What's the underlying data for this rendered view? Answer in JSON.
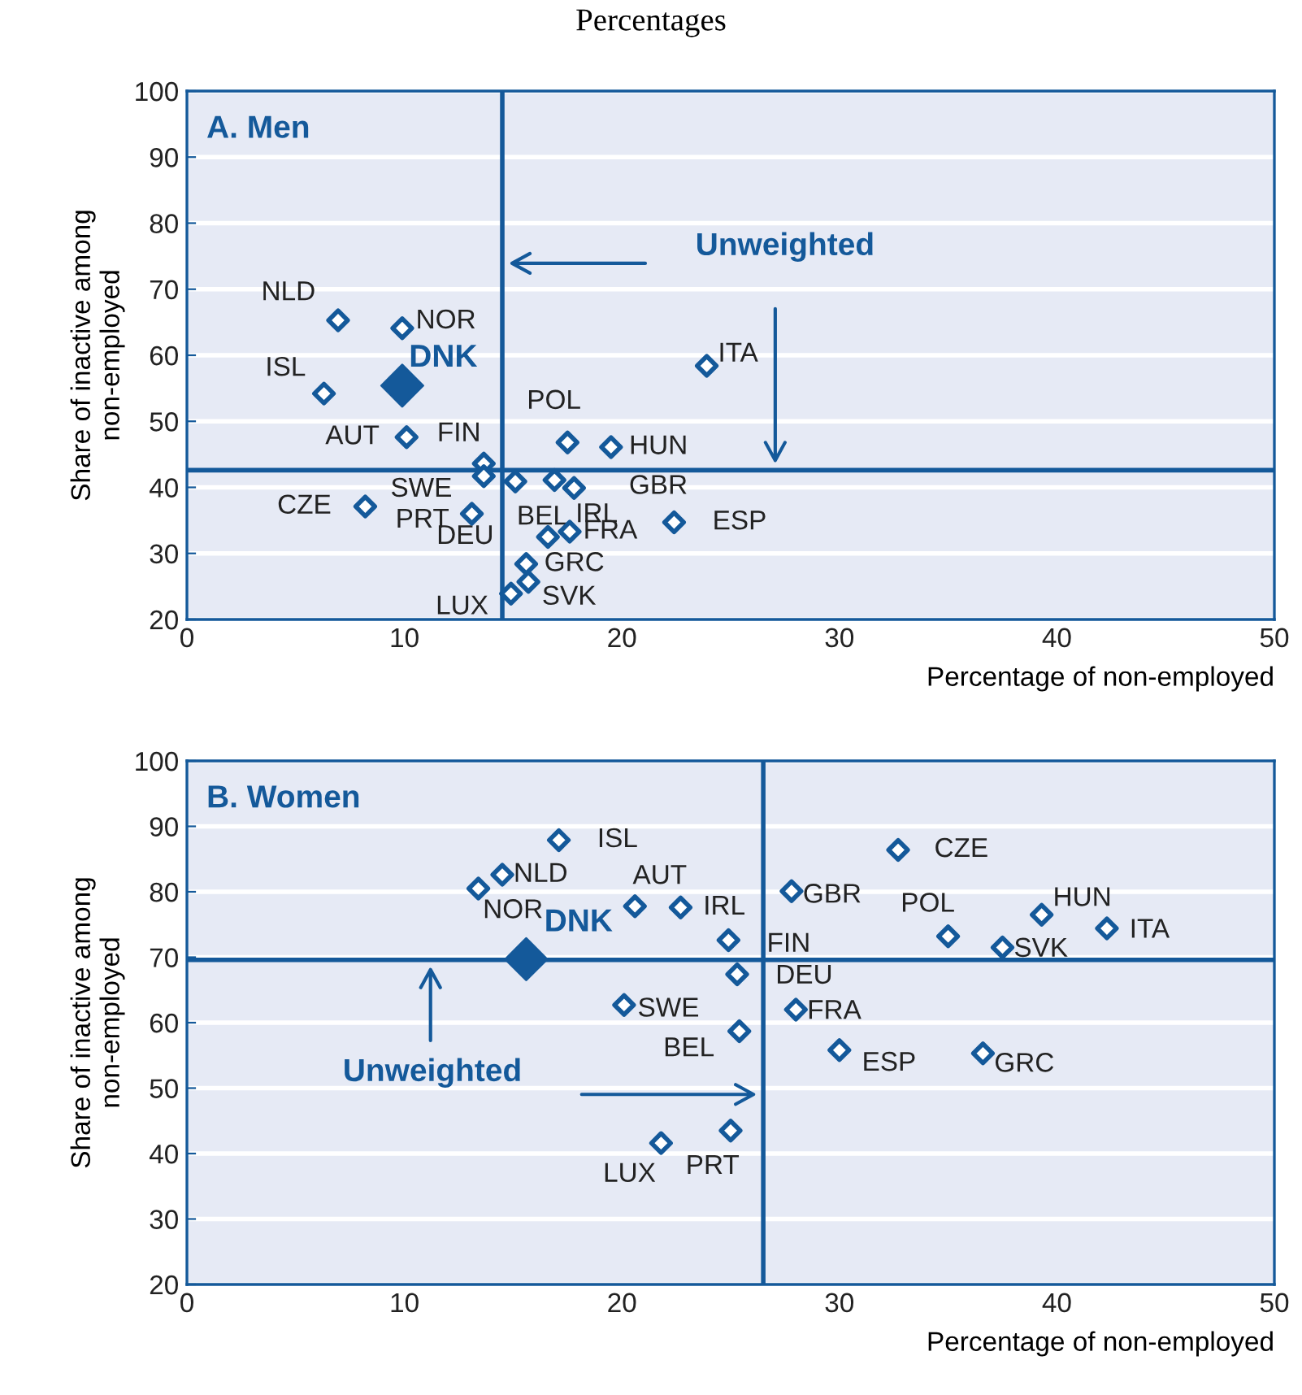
{
  "chart_data": [
    {
      "type": "scatter",
      "title": "Percentages",
      "subtitle": "A. Men",
      "xlabel": "Percentage of non-employed",
      "ylabel": "Share of inactive among non-employed",
      "xlim": [
        0,
        50
      ],
      "ylim": [
        20,
        100
      ],
      "xticks": [
        0,
        10,
        20,
        30,
        40,
        50
      ],
      "yticks": [
        20,
        30,
        40,
        50,
        60,
        70,
        80,
        90,
        100
      ],
      "grid": "y",
      "marker": "diamond",
      "legend": false,
      "series": [
        {
          "color": "#14599a",
          "x": [
            6.95,
            9.9,
            6.3,
            10.1,
            13.65,
            13.65,
            15.1,
            16.9,
            17.8,
            8.2,
            13.1,
            16.6,
            17.6,
            22.4,
            15.6,
            15.7,
            14.9,
            17.5,
            19.5,
            23.9
          ],
          "values": [
            65.3,
            64.1,
            54.2,
            47.6,
            43.6,
            41.7,
            40.9,
            41.1,
            39.9,
            37.1,
            36.0,
            32.5,
            33.3,
            34.7,
            28.4,
            25.7,
            23.9,
            46.8,
            46.1,
            58.4
          ]
        },
        {
          "name": "DNK",
          "color": "#14599a",
          "x": [
            9.9
          ],
          "values": [
            55.4
          ]
        }
      ],
      "ref_lines": [
        {
          "axis": "x",
          "value": 14.5,
          "label": "Unweighted",
          "color": "#14599a"
        },
        {
          "axis": "y",
          "value": 42.6,
          "label": null,
          "color": "#14599a"
        }
      ],
      "annotations": [
        {
          "text": "NLD",
          "x": 6.95,
          "y": 65.3
        },
        {
          "text": "NOR",
          "x": 9.9,
          "y": 64.1
        },
        {
          "text": "ISL",
          "x": 6.3,
          "y": 54.2
        },
        {
          "text": "AUT",
          "x": 10.1,
          "y": 47.6
        },
        {
          "text": "FIN",
          "x": 13.65,
          "y": 43.6
        },
        {
          "text": "SWE",
          "x": 13.65,
          "y": 41.7
        },
        {
          "text": "BEL",
          "x": 15.1,
          "y": 40.9
        },
        {
          "text": "GBR",
          "x": 16.9,
          "y": 41.1
        },
        {
          "text": "IRL",
          "x": 17.8,
          "y": 39.9
        },
        {
          "text": "CZE",
          "x": 8.2,
          "y": 37.1
        },
        {
          "text": "PRT",
          "x": 13.1,
          "y": 36.0
        },
        {
          "text": "DEU",
          "x": 16.6,
          "y": 32.5
        },
        {
          "text": "FRA",
          "x": 17.6,
          "y": 33.3
        },
        {
          "text": "ESP",
          "x": 22.4,
          "y": 34.7
        },
        {
          "text": "GRC",
          "x": 15.6,
          "y": 28.4
        },
        {
          "text": "SVK",
          "x": 15.7,
          "y": 25.7
        },
        {
          "text": "LUX",
          "x": 14.9,
          "y": 23.9
        },
        {
          "text": "POL",
          "x": 17.5,
          "y": 46.8
        },
        {
          "text": "HUN",
          "x": 19.5,
          "y": 46.1
        },
        {
          "text": "ITA",
          "x": 23.9,
          "y": 58.4
        }
      ]
    },
    {
      "type": "scatter",
      "subtitle": "B. Women",
      "xlabel": "Percentage of non-employed",
      "ylabel": "Share of inactive among non-employed",
      "xlim": [
        0,
        50
      ],
      "ylim": [
        20,
        100
      ],
      "xticks": [
        0,
        10,
        20,
        30,
        40,
        50
      ],
      "yticks": [
        20,
        30,
        40,
        50,
        60,
        70,
        80,
        90,
        100
      ],
      "grid": "y",
      "marker": "diamond",
      "legend": false,
      "series": [
        {
          "color": "#14599a",
          "x": [
            17.1,
            14.5,
            13.4,
            20.6,
            22.7,
            24.9,
            25.3,
            20.1,
            25.4,
            25.0,
            21.8,
            32.7,
            27.8,
            35.0,
            39.3,
            42.3,
            37.5,
            28.0,
            30.0,
            36.6
          ],
          "values": [
            87.9,
            82.6,
            80.5,
            77.8,
            77.6,
            72.6,
            67.4,
            62.7,
            58.7,
            43.5,
            41.6,
            86.4,
            80.1,
            73.2,
            76.5,
            74.4,
            71.5,
            62.0,
            55.8,
            55.3
          ]
        },
        {
          "name": "DNK",
          "color": "#14599a",
          "x": [
            15.6
          ],
          "values": [
            69.7
          ]
        }
      ],
      "ref_lines": [
        {
          "axis": "x",
          "value": 26.5,
          "label": "Unweighted",
          "color": "#14599a"
        },
        {
          "axis": "y",
          "value": 69.6,
          "label": null,
          "color": "#14599a"
        }
      ],
      "annotations": [
        {
          "text": "ISL",
          "x": 17.1,
          "y": 87.9
        },
        {
          "text": "NLD",
          "x": 14.5,
          "y": 82.6
        },
        {
          "text": "NOR",
          "x": 13.4,
          "y": 80.5
        },
        {
          "text": "AUT",
          "x": 20.6,
          "y": 77.8
        },
        {
          "text": "IRL",
          "x": 22.7,
          "y": 77.6
        },
        {
          "text": "FIN",
          "x": 24.9,
          "y": 72.6
        },
        {
          "text": "DEU",
          "x": 25.3,
          "y": 67.4
        },
        {
          "text": "SWE",
          "x": 20.1,
          "y": 62.7
        },
        {
          "text": "BEL",
          "x": 25.4,
          "y": 58.7
        },
        {
          "text": "PRT",
          "x": 25.0,
          "y": 43.5
        },
        {
          "text": "LUX",
          "x": 21.8,
          "y": 41.6
        },
        {
          "text": "CZE",
          "x": 32.7,
          "y": 86.4
        },
        {
          "text": "GBR",
          "x": 27.8,
          "y": 80.1
        },
        {
          "text": "POL",
          "x": 35.0,
          "y": 73.2
        },
        {
          "text": "HUN",
          "x": 39.3,
          "y": 76.5
        },
        {
          "text": "ITA",
          "x": 42.3,
          "y": 74.4
        },
        {
          "text": "SVK",
          "x": 37.5,
          "y": 71.5
        },
        {
          "text": "FRA",
          "x": 28.0,
          "y": 62.0
        },
        {
          "text": "ESP",
          "x": 30.0,
          "y": 55.8
        },
        {
          "text": "GRC",
          "x": 36.6,
          "y": 55.3
        }
      ]
    }
  ]
}
